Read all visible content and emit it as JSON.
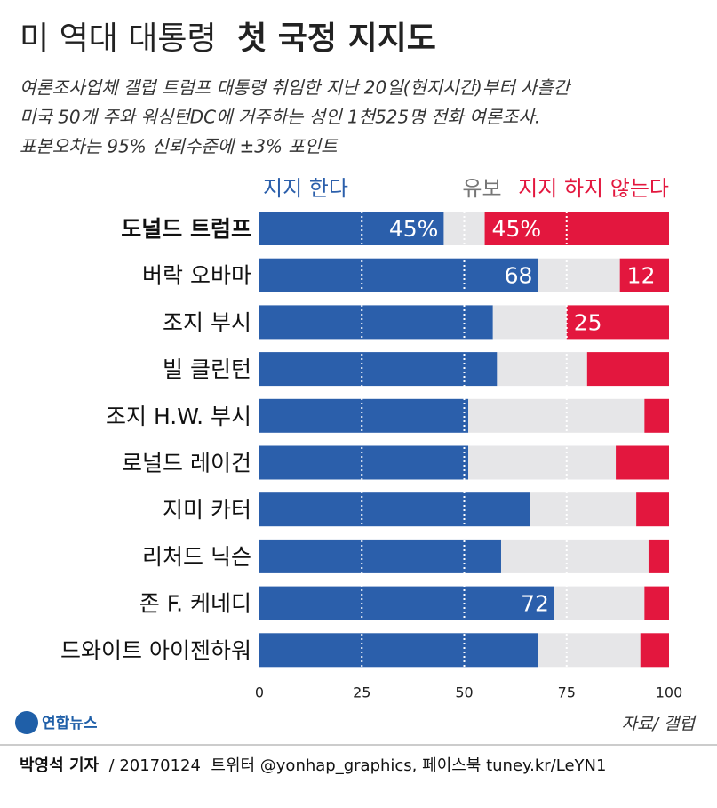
{
  "chart_data": {
    "type": "stacked_barh",
    "title": [
      "미 역대 대통령",
      "첫 국정 지지도"
    ],
    "subtitle": [
      "여론조사업체 갤럽 트럼프 대통령 취임한 지난 20일(현지시간)부터 사흘간",
      "미국 50개 주와 워싱턴DC에 거주하는 성인 1천525명 전화 여론조사.",
      "표본오차는 95% 신뢰수준에 ±3% 포인트"
    ],
    "categories": [
      "도널드 트럼프",
      "버락 오바마",
      "조지 부시",
      "빌 클린턴",
      "조지 H.W. 부시",
      "로널드 레이건",
      "지미 카터",
      "리처드 닉슨",
      "존 F. 케네디",
      "드와이트 아이젠하워"
    ],
    "series": [
      {
        "name": "지지 한다",
        "color": "#2b5fab",
        "values": [
          45,
          68,
          57,
          58,
          51,
          51,
          66,
          59,
          72,
          68
        ],
        "value_labels": [
          "45%",
          "68",
          null,
          null,
          null,
          null,
          null,
          null,
          "72",
          null
        ]
      },
      {
        "name": "유보",
        "color": "#e6e6e8",
        "values": [
          10,
          20,
          18,
          22,
          43,
          36,
          26,
          36,
          22,
          25
        ]
      },
      {
        "name": "지지 하지 않는다",
        "color": "#e3173e",
        "values": [
          45,
          12,
          25,
          20,
          6,
          13,
          8,
          5,
          6,
          7
        ],
        "value_labels": [
          "45%",
          "12",
          "25",
          null,
          null,
          null,
          null,
          null,
          null,
          null
        ]
      }
    ],
    "xlim": [
      0,
      100
    ],
    "xticks": [
      0,
      25,
      50,
      75,
      100
    ],
    "grid": true,
    "source": "자료/ 갤럽",
    "logo": "연합뉴스",
    "footer": [
      "박영석 기자",
      " / 20170124  트위터 @yonhap_graphics, 페이스북 tuney.kr/LeYN1"
    ]
  }
}
